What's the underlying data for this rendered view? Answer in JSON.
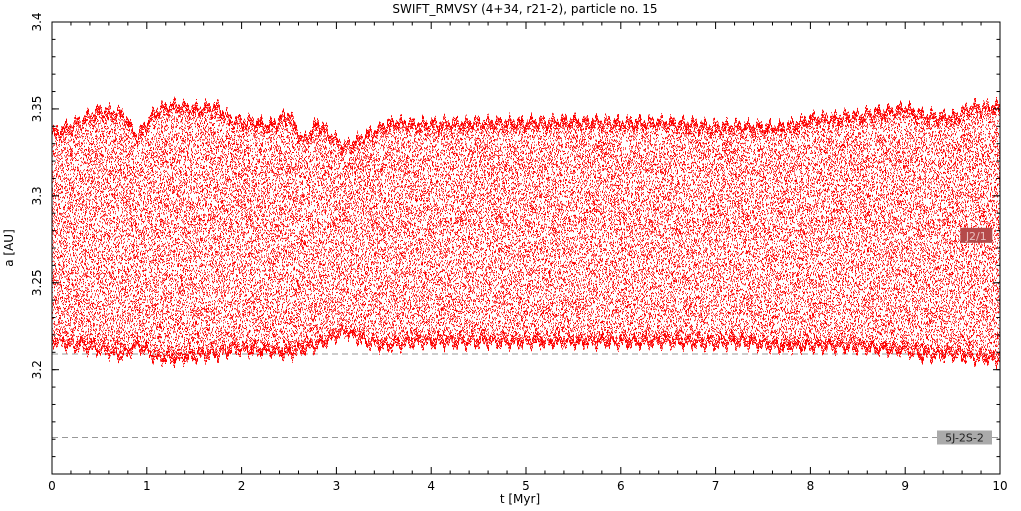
{
  "chart_data": {
    "type": "scatter",
    "title": "SWIFT_RMVSY (4+34, r21-2), particle no. 15",
    "xlabel": "t [Myr]",
    "ylabel": "a [AU]",
    "xlim": [
      0,
      10
    ],
    "ylim": [
      3.14,
      3.4
    ],
    "x_ticks": [
      "0",
      "1",
      "2",
      "3",
      "4",
      "5",
      "6",
      "7",
      "8",
      "9",
      "10"
    ],
    "y_ticks": [
      "3.2",
      "3.25",
      "3.3",
      "3.35",
      "3.4"
    ],
    "grid": false,
    "series": [
      {
        "color": "#ff0000",
        "envelope": {
          "t": [
            0,
            0.2,
            0.5,
            0.75,
            0.9,
            1.1,
            1.3,
            1.5,
            1.75,
            1.9,
            2.1,
            2.3,
            2.5,
            2.65,
            2.8,
            3.0,
            3.1,
            3.3,
            3.5,
            3.6,
            3.8,
            4.0,
            4.5,
            5.0,
            5.5,
            6.0,
            6.5,
            7.0,
            7.3,
            7.7,
            8.0,
            8.5,
            9.0,
            9.2,
            9.5,
            9.7,
            10.0
          ],
          "upper": [
            3.338,
            3.342,
            3.351,
            3.349,
            3.336,
            3.351,
            3.354,
            3.352,
            3.353,
            3.345,
            3.345,
            3.342,
            3.349,
            3.333,
            3.344,
            3.334,
            3.33,
            3.336,
            3.342,
            3.344,
            3.343,
            3.343,
            3.344,
            3.344,
            3.345,
            3.344,
            3.344,
            3.342,
            3.342,
            3.341,
            3.346,
            3.348,
            3.352,
            3.348,
            3.347,
            3.353,
            3.353
          ],
          "lower": [
            3.215,
            3.212,
            3.21,
            3.206,
            3.212,
            3.205,
            3.204,
            3.206,
            3.207,
            3.21,
            3.209,
            3.209,
            3.207,
            3.21,
            3.212,
            3.218,
            3.22,
            3.214,
            3.212,
            3.212,
            3.214,
            3.214,
            3.214,
            3.214,
            3.214,
            3.214,
            3.214,
            3.213,
            3.214,
            3.211,
            3.212,
            3.211,
            3.209,
            3.206,
            3.207,
            3.205,
            3.204
          ]
        }
      }
    ],
    "reference_lines": [
      {
        "y": 3.209,
        "label": ""
      },
      {
        "y": 3.161,
        "label": "5J-2S-2"
      }
    ],
    "annotations": [
      {
        "text": "J2/1",
        "x": 9.75,
        "y": 3.277
      }
    ]
  }
}
